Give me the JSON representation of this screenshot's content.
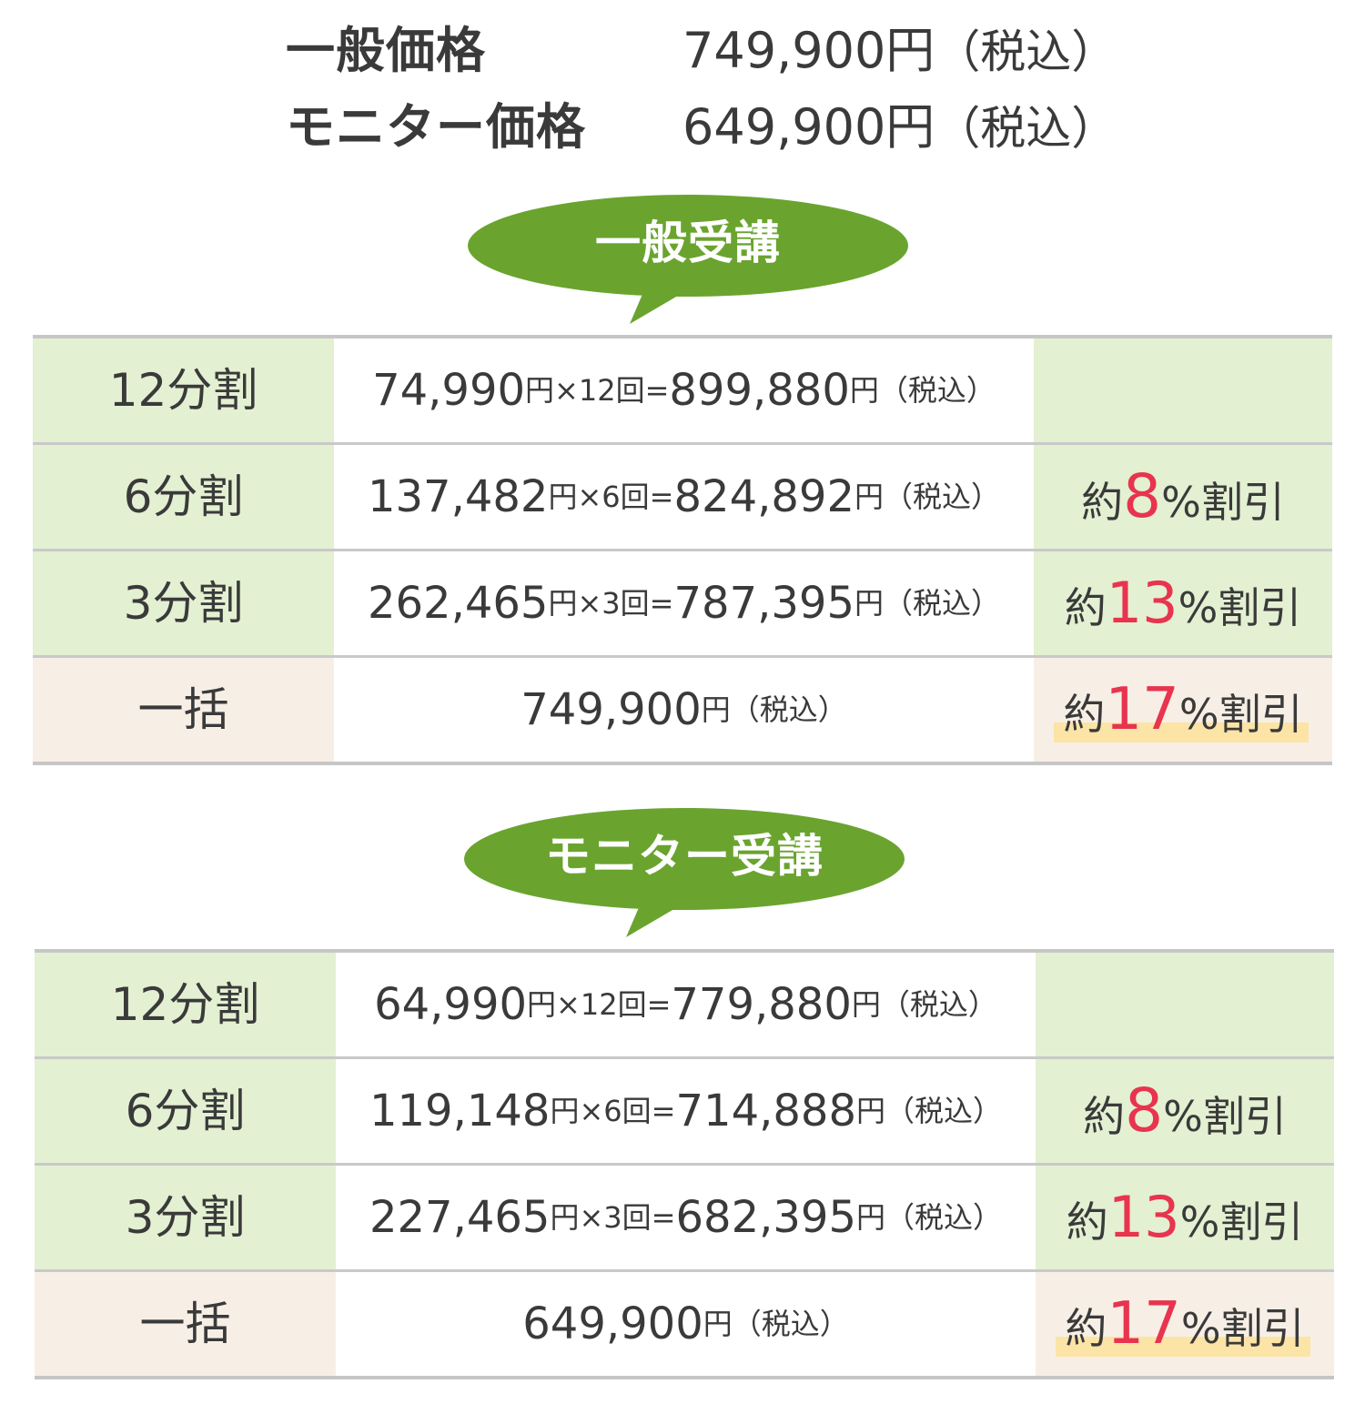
{
  "summary": {
    "general_label": "一般価格",
    "general_price": "749,900円",
    "general_tax": "（税込）",
    "monitor_label": "モニター価格",
    "monitor_price": "649,900円",
    "monitor_tax": "（税込）"
  },
  "colors": {
    "bubble_green": "#6aa42f",
    "name_cell_bg": "#e3f0d2",
    "lump_cell_bg": "#f7efe6",
    "discount_red": "#e8344e",
    "highlight_yellow": "#fbe4a6"
  },
  "general": {
    "heading": "一般受講",
    "rows": [
      {
        "name": "12分割",
        "installment": "74,990",
        "unit1": "円×12",
        "unit2": "回=",
        "total": "899,880",
        "yen": "円",
        "tax": "（税込）",
        "disc_pre": "",
        "disc_num": "",
        "disc_post": ""
      },
      {
        "name": "6分割",
        "installment": "137,482",
        "unit1": "円×6",
        "unit2": "回=",
        "total": "824,892",
        "yen": "円",
        "tax": "（税込）",
        "disc_pre": "約",
        "disc_num": "8",
        "disc_post": "%割引"
      },
      {
        "name": "3分割",
        "installment": "262,465",
        "unit1": "円×3",
        "unit2": "回=",
        "total": "787,395",
        "yen": "円",
        "tax": "（税込）",
        "disc_pre": "約",
        "disc_num": "13",
        "disc_post": "%割引"
      },
      {
        "name": "一括",
        "lump_price": "749,900",
        "yen": "円",
        "tax": "（税込）",
        "disc_pre": "約",
        "disc_num": "17",
        "disc_post": "%割引"
      }
    ]
  },
  "monitor": {
    "heading": "モニター受講",
    "rows": [
      {
        "name": "12分割",
        "installment": "64,990",
        "unit1": "円×12",
        "unit2": "回=",
        "total": "779,880",
        "yen": "円",
        "tax": "（税込）",
        "disc_pre": "",
        "disc_num": "",
        "disc_post": ""
      },
      {
        "name": "6分割",
        "installment": "119,148",
        "unit1": "円×6",
        "unit2": "回=",
        "total": "714,888",
        "yen": "円",
        "tax": "（税込）",
        "disc_pre": "約",
        "disc_num": "8",
        "disc_post": "%割引"
      },
      {
        "name": "3分割",
        "installment": "227,465",
        "unit1": "円×3",
        "unit2": "回=",
        "total": "682,395",
        "yen": "円",
        "tax": "（税込）",
        "disc_pre": "約",
        "disc_num": "13",
        "disc_post": "%割引"
      },
      {
        "name": "一括",
        "lump_price": "649,900",
        "yen": "円",
        "tax": "（税込）",
        "disc_pre": "約",
        "disc_num": "17",
        "disc_post": "%割引"
      }
    ]
  }
}
